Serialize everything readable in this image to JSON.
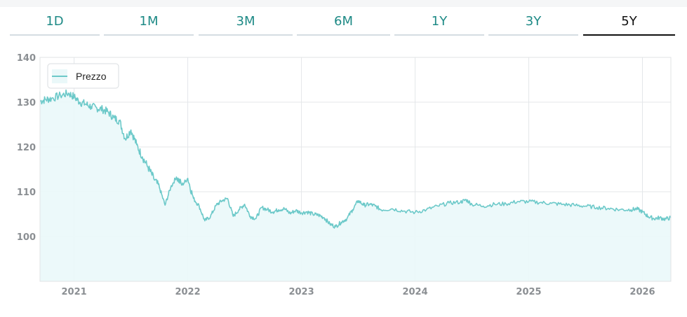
{
  "tabs": [
    {
      "label": "1D",
      "active": false
    },
    {
      "label": "1M",
      "active": false
    },
    {
      "label": "3M",
      "active": false
    },
    {
      "label": "6M",
      "active": false
    },
    {
      "label": "1Y",
      "active": false
    },
    {
      "label": "3Y",
      "active": false
    },
    {
      "label": "5Y",
      "active": true
    }
  ],
  "colors": {
    "line": "#6cc9c9",
    "fill": "#eaf8f9",
    "active_tab": "#111111",
    "tab_text": "#1e8a86"
  },
  "chart_data": {
    "type": "area",
    "title": "",
    "xlabel": "",
    "ylabel": "",
    "legend": {
      "label": "Prezzo",
      "position": "top-left"
    },
    "ylim": [
      90,
      140
    ],
    "yticks": [
      100,
      110,
      120,
      130,
      140
    ],
    "xlim": [
      2020.7,
      2026.25
    ],
    "xticks": [
      {
        "label": "2021",
        "x": 2021.0
      },
      {
        "label": "2022",
        "x": 2022.0
      },
      {
        "label": "2023",
        "x": 2023.0
      },
      {
        "label": "2024",
        "x": 2024.0
      },
      {
        "label": "2025",
        "x": 2025.0
      },
      {
        "label": "2026",
        "x": 2026.0
      }
    ],
    "grid": true,
    "series": [
      {
        "name": "Prezzo",
        "x": [
          2020.7,
          2020.75,
          2020.8,
          2020.88,
          2020.95,
          2021.0,
          2021.05,
          2021.1,
          2021.15,
          2021.2,
          2021.25,
          2021.3,
          2021.35,
          2021.4,
          2021.45,
          2021.5,
          2021.55,
          2021.6,
          2021.65,
          2021.7,
          2021.75,
          2021.8,
          2021.85,
          2021.9,
          2021.95,
          2022.0,
          2022.05,
          2022.1,
          2022.15,
          2022.2,
          2022.25,
          2022.3,
          2022.35,
          2022.4,
          2022.45,
          2022.5,
          2022.55,
          2022.6,
          2022.65,
          2022.7,
          2022.75,
          2022.8,
          2022.85,
          2022.9,
          2022.95,
          2023.0,
          2023.05,
          2023.1,
          2023.15,
          2023.2,
          2023.25,
          2023.3,
          2023.35,
          2023.4,
          2023.45,
          2023.5,
          2023.55,
          2023.6,
          2023.65,
          2023.7,
          2023.8,
          2023.9,
          2024.0,
          2024.1,
          2024.2,
          2024.3,
          2024.4,
          2024.45,
          2024.5,
          2024.6,
          2024.7,
          2024.8,
          2024.9,
          2025.0,
          2025.1,
          2025.2,
          2025.3,
          2025.4,
          2025.5,
          2025.6,
          2025.7,
          2025.8,
          2025.9,
          2025.95,
          2026.0,
          2026.05,
          2026.1,
          2026.15,
          2026.2,
          2026.25
        ],
        "values": [
          130.2,
          130.6,
          130.8,
          131.5,
          132.0,
          131.2,
          130.0,
          129.6,
          129.0,
          128.7,
          128.4,
          127.8,
          126.5,
          125.8,
          121.8,
          123.8,
          120.5,
          117.8,
          115.5,
          113.0,
          111.0,
          107.0,
          111.0,
          113.3,
          111.5,
          113.0,
          108.5,
          106.8,
          103.5,
          104.5,
          107.0,
          108.0,
          108.5,
          104.5,
          106.0,
          107.2,
          104.5,
          104.0,
          106.5,
          106.0,
          105.5,
          106.0,
          106.2,
          105.2,
          105.8,
          105.3,
          105.5,
          105.0,
          104.8,
          104.2,
          102.8,
          102.2,
          103.2,
          104.0,
          106.0,
          108.0,
          107.0,
          107.2,
          106.8,
          106.0,
          106.2,
          105.7,
          105.4,
          106.0,
          106.8,
          107.5,
          107.7,
          108.2,
          107.2,
          106.8,
          107.2,
          107.3,
          107.8,
          107.8,
          107.6,
          107.4,
          107.2,
          107.0,
          106.8,
          106.5,
          106.3,
          106.0,
          106.0,
          106.2,
          105.5,
          104.5,
          104.0,
          104.2,
          103.9,
          104.2
        ]
      }
    ]
  }
}
